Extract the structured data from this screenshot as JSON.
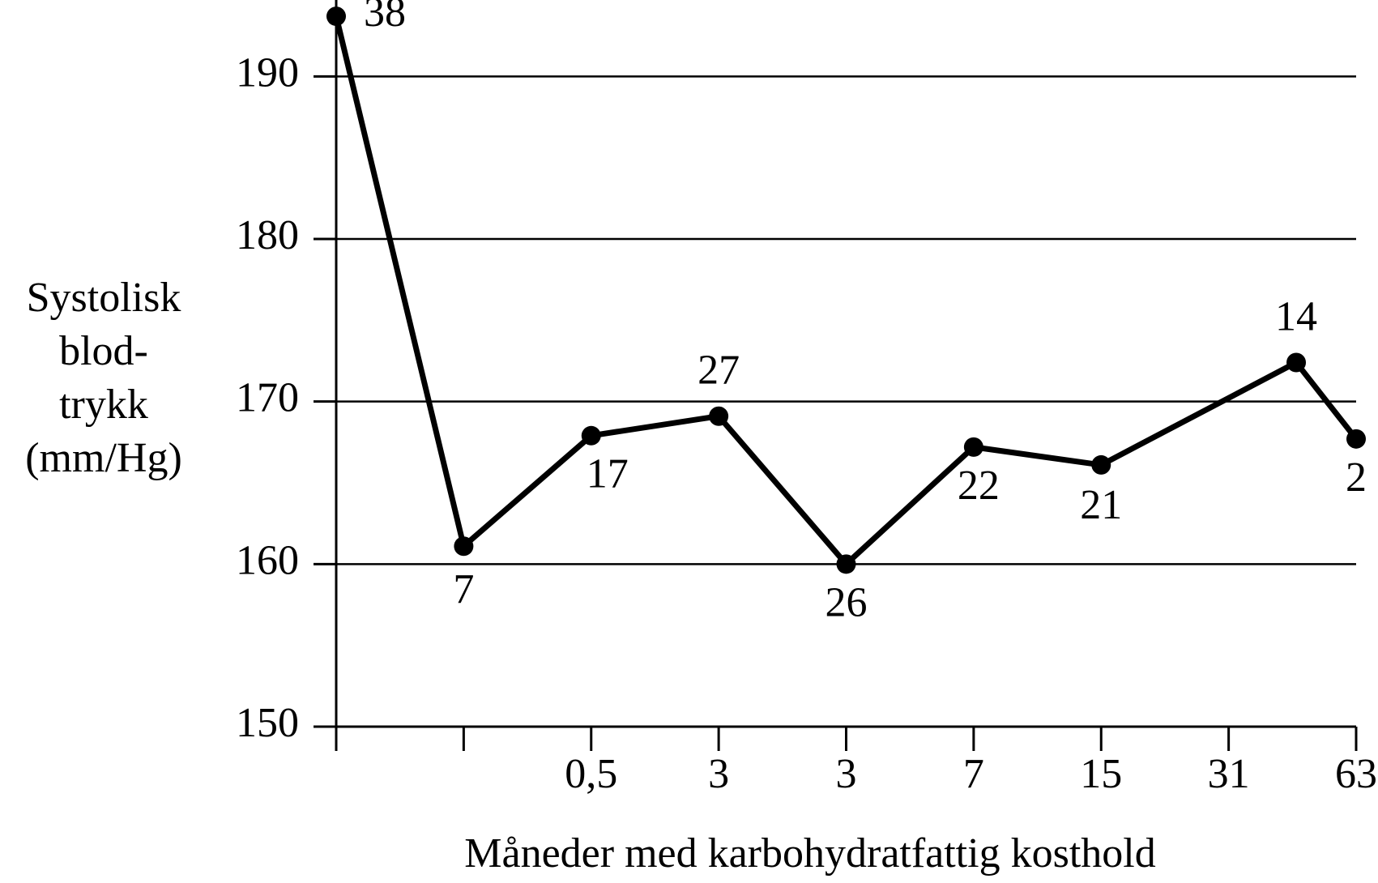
{
  "chart_data": {
    "type": "line",
    "ylabel": [
      "Systolisk",
      "blod-",
      "trykk",
      "(mm/Hg)"
    ],
    "xlabel": "Måneder med karbohydratfattig kosthold",
    "x": [
      0,
      1,
      2,
      3,
      4,
      5,
      6,
      7.53,
      8
    ],
    "series": [
      {
        "color": "#000000",
        "values": [
          193.7,
          161.1,
          167.9,
          169.1,
          160.0,
          167.2,
          166.1,
          172.4,
          167.7
        ]
      }
    ],
    "annotations": [
      38,
      7,
      17,
      27,
      26,
      22,
      21,
      14,
      2
    ],
    "xlim": [
      0,
      8
    ],
    "xticks": [
      {
        "value": 0,
        "label": null
      },
      {
        "value": 1,
        "label": null
      },
      {
        "value": 2,
        "label": "0,5"
      },
      3,
      {
        "value": 4,
        "label": "3"
      },
      {
        "value": 5,
        "label": "7"
      },
      {
        "value": 6,
        "label": "15"
      },
      {
        "value": 7,
        "label": "31"
      },
      {
        "value": 8,
        "label": "63"
      }
    ],
    "ylim": [
      150,
      195
    ],
    "yticks": [
      150,
      160,
      170,
      180,
      190
    ],
    "grid": true
  }
}
